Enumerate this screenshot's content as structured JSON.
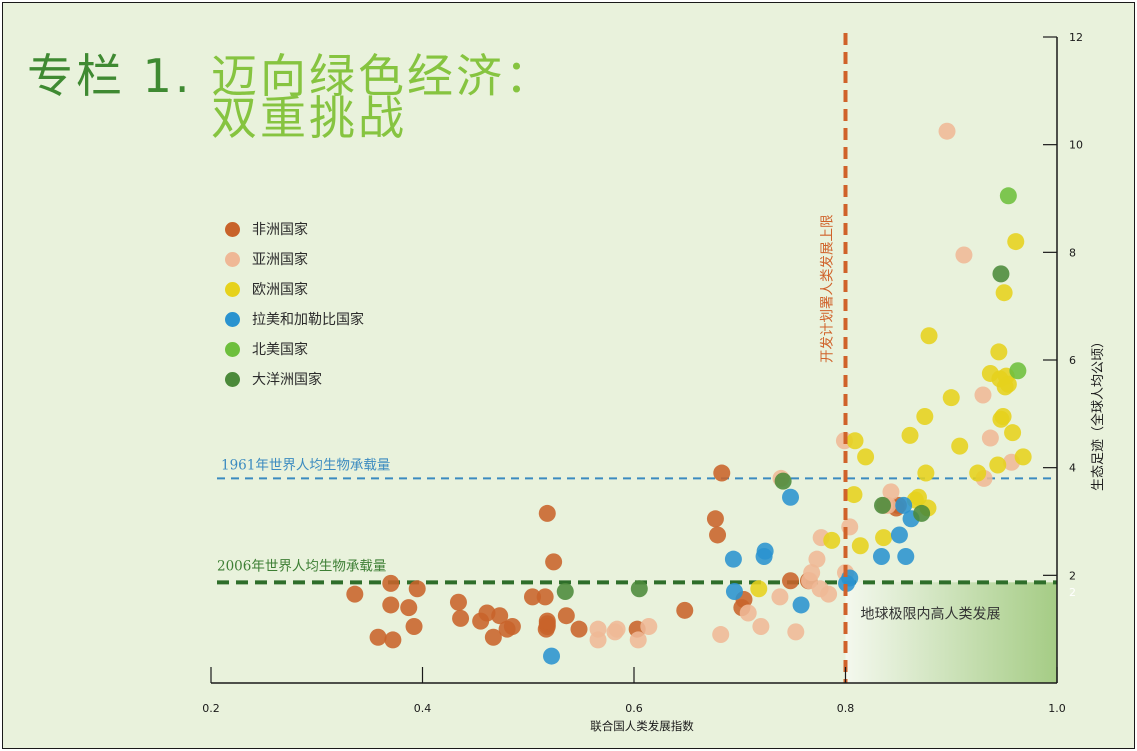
{
  "title": {
    "prefix": "专栏 1.",
    "line1": "迈向绿色经济：",
    "line2": "双重挑战"
  },
  "colors": {
    "background": "#e9f2dc",
    "africa": "#c8632a",
    "asia": "#efb896",
    "europe": "#e6d21c",
    "latin_america": "#2a93cf",
    "north_america": "#6dbf3c",
    "oceania": "#4b8a3a",
    "blue_line": "#3b8bc0",
    "green_line": "#2e6e2a",
    "orange_line": "#d0622a",
    "title_dark": "#3f8a32",
    "title_light": "#86c440"
  },
  "legend": [
    {
      "key": "africa",
      "label": "非洲国家",
      "color": "#c8632a"
    },
    {
      "key": "asia",
      "label": "亚洲国家",
      "color": "#efb896"
    },
    {
      "key": "europe",
      "label": "欧洲国家",
      "color": "#e6d21c"
    },
    {
      "key": "latin_america",
      "label": "拉美和加勒比国家",
      "color": "#2a93cf"
    },
    {
      "key": "north_america",
      "label": "北美国家",
      "color": "#6dbf3c"
    },
    {
      "key": "oceania",
      "label": "大洋洲国家",
      "color": "#4b8a3a"
    }
  ],
  "chart_data": {
    "type": "scatter",
    "xlabel": "联合国人类发展指数",
    "ylabel": "生态足迹（全球人均公顷）",
    "xlim": [
      0.2,
      1.0
    ],
    "ylim": [
      0,
      12
    ],
    "xticks": [
      "0.2",
      "0.4",
      "0.6",
      "0.8",
      "1.0"
    ],
    "yticks": [
      "2",
      "4",
      "6",
      "8",
      "10",
      "12"
    ],
    "y_axis_side": "right",
    "reference_lines": {
      "hline_1961": {
        "y": 3.8,
        "label": "1961年世界人均生物承载量",
        "style": "dashed"
      },
      "hline_2006": {
        "y": 1.87,
        "label": "2006年世界人均生物承载量",
        "style": "dashed"
      },
      "vline_hdi": {
        "x": 0.8,
        "label": "开发计划署人类发展上限",
        "style": "dashed"
      }
    },
    "quadrant": {
      "label": "地球极限内高人类发展",
      "x_from": 0.8,
      "y_to": 1.87
    },
    "quadrant_tick_label": "2",
    "series": [
      {
        "key": "africa",
        "name": "非洲国家",
        "points": [
          [
            0.336,
            1.65
          ],
          [
            0.358,
            0.85
          ],
          [
            0.37,
            1.85
          ],
          [
            0.37,
            1.45
          ],
          [
            0.372,
            0.8
          ],
          [
            0.387,
            1.4
          ],
          [
            0.392,
            1.05
          ],
          [
            0.395,
            1.75
          ],
          [
            0.434,
            1.5
          ],
          [
            0.436,
            1.2
          ],
          [
            0.455,
            1.15
          ],
          [
            0.461,
            1.3
          ],
          [
            0.467,
            0.85
          ],
          [
            0.473,
            1.25
          ],
          [
            0.48,
            1.0
          ],
          [
            0.485,
            1.05
          ],
          [
            0.504,
            1.6
          ],
          [
            0.516,
            1.6
          ],
          [
            0.517,
            1.0
          ],
          [
            0.518,
            1.05
          ],
          [
            0.518,
            1.1
          ],
          [
            0.518,
            1.15
          ],
          [
            0.518,
            3.15
          ],
          [
            0.524,
            2.25
          ],
          [
            0.536,
            1.25
          ],
          [
            0.548,
            1.0
          ],
          [
            0.603,
            1.0
          ],
          [
            0.648,
            1.35
          ],
          [
            0.677,
            3.05
          ],
          [
            0.679,
            2.75
          ],
          [
            0.683,
            3.9
          ],
          [
            0.702,
            1.4
          ],
          [
            0.704,
            1.55
          ],
          [
            0.748,
            1.9
          ],
          [
            0.765,
            1.9
          ],
          [
            0.848,
            3.25
          ],
          [
            0.85,
            3.3
          ]
        ]
      },
      {
        "key": "asia",
        "name": "亚洲国家",
        "points": [
          [
            0.566,
            1.0
          ],
          [
            0.566,
            0.8
          ],
          [
            0.582,
            0.95
          ],
          [
            0.584,
            1.0
          ],
          [
            0.604,
            0.8
          ],
          [
            0.614,
            1.05
          ],
          [
            0.682,
            0.9
          ],
          [
            0.708,
            1.3
          ],
          [
            0.72,
            1.05
          ],
          [
            0.738,
            1.6
          ],
          [
            0.739,
            3.8
          ],
          [
            0.753,
            0.95
          ],
          [
            0.766,
            1.9
          ],
          [
            0.768,
            2.05
          ],
          [
            0.773,
            2.3
          ],
          [
            0.776,
            1.75
          ],
          [
            0.777,
            2.7
          ],
          [
            0.784,
            1.65
          ],
          [
            0.799,
            4.5
          ],
          [
            0.8,
            2.05
          ],
          [
            0.804,
            2.9
          ],
          [
            0.837,
            3.3
          ],
          [
            0.84,
            3.3
          ],
          [
            0.843,
            3.55
          ],
          [
            0.896,
            10.25
          ],
          [
            0.912,
            7.95
          ],
          [
            0.93,
            5.35
          ],
          [
            0.931,
            3.8
          ],
          [
            0.937,
            4.55
          ],
          [
            0.957,
            4.1
          ]
        ]
      },
      {
        "key": "europe",
        "name": "欧洲国家",
        "points": [
          [
            0.718,
            1.75
          ],
          [
            0.787,
            2.65
          ],
          [
            0.808,
            3.5
          ],
          [
            0.809,
            4.5
          ],
          [
            0.814,
            2.55
          ],
          [
            0.819,
            4.2
          ],
          [
            0.836,
            2.7
          ],
          [
            0.861,
            4.6
          ],
          [
            0.866,
            3.4
          ],
          [
            0.869,
            3.45
          ],
          [
            0.875,
            4.95
          ],
          [
            0.876,
            3.9
          ],
          [
            0.878,
            3.25
          ],
          [
            0.879,
            6.45
          ],
          [
            0.9,
            5.3
          ],
          [
            0.908,
            4.4
          ],
          [
            0.925,
            3.9
          ],
          [
            0.937,
            5.75
          ],
          [
            0.944,
            4.05
          ],
          [
            0.945,
            6.15
          ],
          [
            0.946,
            5.65
          ],
          [
            0.947,
            4.9
          ],
          [
            0.949,
            4.95
          ],
          [
            0.95,
            7.25
          ],
          [
            0.951,
            5.5
          ],
          [
            0.952,
            5.7
          ],
          [
            0.954,
            5.55
          ],
          [
            0.958,
            4.65
          ],
          [
            0.961,
            8.2
          ],
          [
            0.968,
            4.2
          ]
        ]
      },
      {
        "key": "latin_america",
        "name": "拉美和加勒比国家",
        "points": [
          [
            0.522,
            0.5
          ],
          [
            0.694,
            2.3
          ],
          [
            0.695,
            1.7
          ],
          [
            0.723,
            2.35
          ],
          [
            0.724,
            2.45
          ],
          [
            0.748,
            3.45
          ],
          [
            0.758,
            1.45
          ],
          [
            0.801,
            1.85
          ],
          [
            0.804,
            1.95
          ],
          [
            0.834,
            2.35
          ],
          [
            0.851,
            2.75
          ],
          [
            0.855,
            3.3
          ],
          [
            0.857,
            2.35
          ],
          [
            0.862,
            3.05
          ]
        ]
      },
      {
        "key": "north_america",
        "name": "北美国家",
        "points": [
          [
            0.954,
            9.05
          ],
          [
            0.963,
            5.8
          ]
        ]
      },
      {
        "key": "oceania",
        "name": "大洋洲国家",
        "points": [
          [
            0.535,
            1.7
          ],
          [
            0.605,
            1.75
          ],
          [
            0.741,
            3.75
          ],
          [
            0.835,
            3.3
          ],
          [
            0.872,
            3.15
          ],
          [
            0.947,
            7.6
          ]
        ]
      }
    ]
  }
}
